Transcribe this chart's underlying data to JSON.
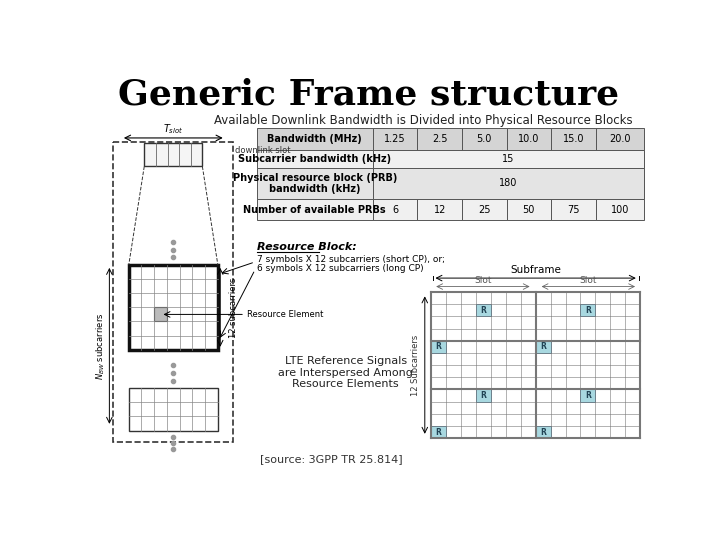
{
  "title": "Generic Frame structure",
  "subtitle": "Available Downlink Bandwidth is Divided into Physical Resource Blocks",
  "table_headers": [
    "Bandwidth (MHz)",
    "1.25",
    "2.5",
    "5.0",
    "10.0",
    "15.0",
    "20.0"
  ],
  "table_row1_label": "Subcarrier bandwidth (kHz)",
  "table_row1_val": "15",
  "table_row2_label": "Physical resource block (PRB)\nbandwidth (kHz)",
  "table_row2_val": "180",
  "table_row3_label": "Number of available PRBs",
  "table_row3_vals": [
    "6",
    "12",
    "25",
    "50",
    "75",
    "100"
  ],
  "resource_block_label": "Resource Block:",
  "rb_desc1": "7 symbols X 12 subcarriers (short CP), or;",
  "rb_desc2": "6 symbols X 12 subcarriers (long CP)",
  "resource_element_label": "Resource Element",
  "lte_ref_label": "LTE Reference Signals\nare Interspersed Among\nResource Elements",
  "source_label": "[source: 3GPP TR 25.814]",
  "ref_color": "#a8d8e0",
  "grid_color": "#888888",
  "table_bg_header": "#d0d0d0",
  "table_bg_alt": "#e8e8e8",
  "table_border": "#555555",
  "bg_color": "#ffffff"
}
